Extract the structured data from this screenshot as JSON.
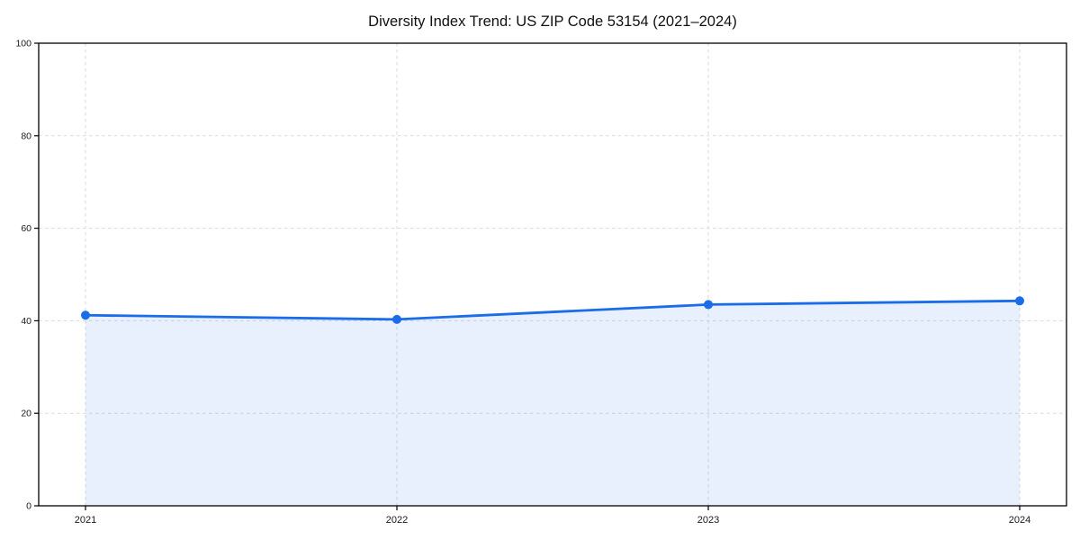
{
  "chart_data": {
    "type": "line",
    "title": "Diversity Index Trend: US ZIP Code 53154 (2021–2024)",
    "x": [
      "2021",
      "2022",
      "2023",
      "2024"
    ],
    "series": [
      {
        "name": "Diversity Index",
        "values": [
          41.2,
          40.3,
          43.5,
          44.3
        ]
      }
    ],
    "xlabel": "",
    "ylabel": "",
    "ylim": [
      0,
      100
    ],
    "yticks": [
      0,
      20,
      40,
      60,
      80,
      100
    ],
    "grid": true,
    "legend": "none",
    "area_fill": true,
    "marker": "circle",
    "line_color": "#1a6ce8",
    "fill_color": "rgba(26,108,232,0.10)",
    "grid_color": "#dadada",
    "axis_color": "#000000",
    "tick_label_color": "#1a1a1a",
    "background": "#ffffff"
  }
}
